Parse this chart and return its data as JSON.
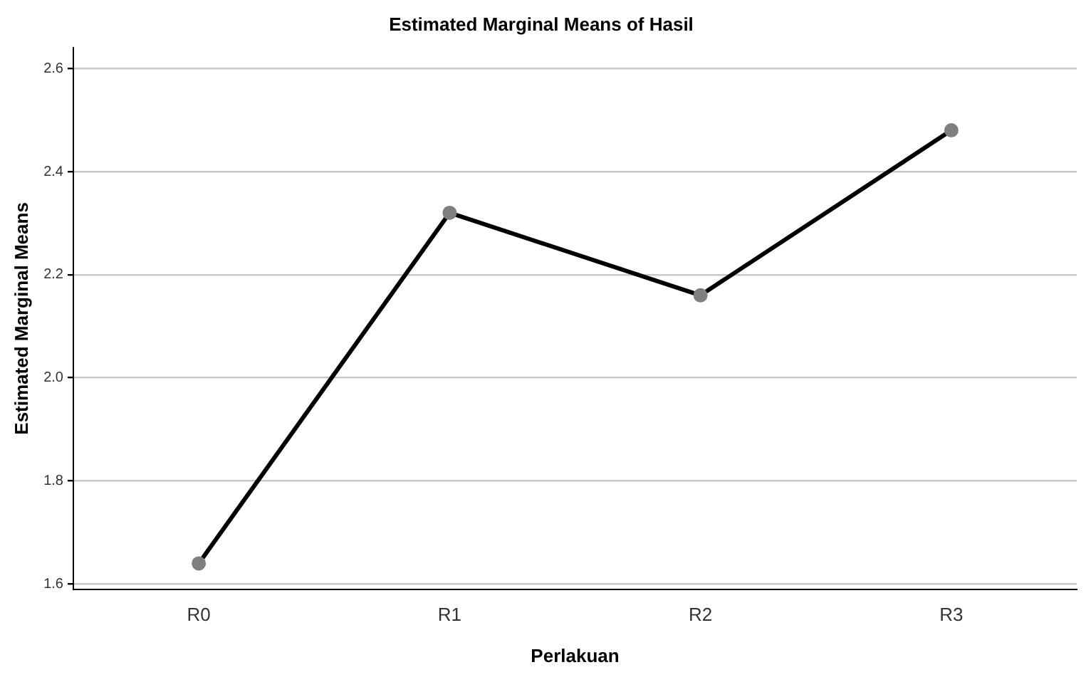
{
  "chart_data": {
    "type": "line",
    "title": "Estimated Marginal Means of Hasil",
    "xlabel": "Perlakuan",
    "ylabel": "Estimated Marginal Means",
    "categories": [
      "R0",
      "R1",
      "R2",
      "R3"
    ],
    "series": [
      {
        "color": "#000000",
        "values": [
          1.64,
          2.32,
          2.16,
          2.48
        ]
      }
    ],
    "ylim": [
      1.59,
      2.64
    ],
    "yticks": [
      {
        "value": 1.6,
        "label": "1.6"
      },
      {
        "value": 1.8,
        "label": "1.8"
      },
      {
        "value": 2.0,
        "label": "2.0"
      },
      {
        "value": 2.2,
        "label": "2.2"
      },
      {
        "value": 2.4,
        "label": "2.4"
      },
      {
        "value": 2.6,
        "label": "2.6"
      }
    ],
    "grid": "y",
    "legend": false,
    "marker": "circle",
    "line_style": "solid"
  }
}
